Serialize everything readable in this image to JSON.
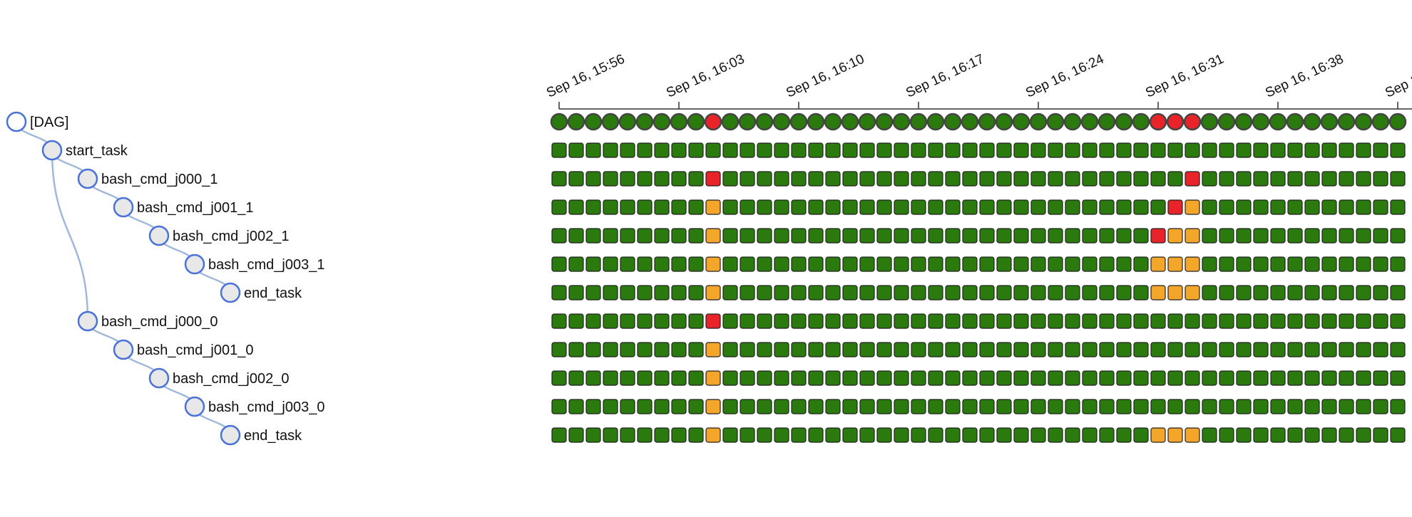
{
  "colors": {
    "success": "#2a7a0d",
    "failed": "#e8242a",
    "upstream_failed": "#f4a62a",
    "node_stroke": "#4a72d8",
    "node_fill": "#e8e8e8",
    "link": "#9fb8dc",
    "cell_stroke": "#222222",
    "dag_stroke": "#444444"
  },
  "tree": {
    "nodes": [
      {
        "label": "[DAG]",
        "depth": 0,
        "parent": null,
        "kind": "dag"
      },
      {
        "label": "start_task",
        "depth": 1,
        "parent": 0,
        "kind": "task"
      },
      {
        "label": "bash_cmd_j000_1",
        "depth": 2,
        "parent": 1,
        "kind": "task"
      },
      {
        "label": "bash_cmd_j001_1",
        "depth": 3,
        "parent": 2,
        "kind": "task"
      },
      {
        "label": "bash_cmd_j002_1",
        "depth": 4,
        "parent": 3,
        "kind": "task"
      },
      {
        "label": "bash_cmd_j003_1",
        "depth": 5,
        "parent": 4,
        "kind": "task"
      },
      {
        "label": "end_task",
        "depth": 6,
        "parent": 5,
        "kind": "task"
      },
      {
        "label": "bash_cmd_j000_0",
        "depth": 2,
        "parent": 1,
        "kind": "task"
      },
      {
        "label": "bash_cmd_j001_0",
        "depth": 3,
        "parent": 7,
        "kind": "task"
      },
      {
        "label": "bash_cmd_j002_0",
        "depth": 4,
        "parent": 8,
        "kind": "task"
      },
      {
        "label": "bash_cmd_j003_0",
        "depth": 5,
        "parent": 9,
        "kind": "task"
      },
      {
        "label": "end_task",
        "depth": 6,
        "parent": 10,
        "kind": "task"
      }
    ]
  },
  "timeline": {
    "ticks": [
      {
        "label": "Sep 16, 15:56",
        "col": 0
      },
      {
        "label": "Sep 16, 16:03",
        "col": 7
      },
      {
        "label": "Sep 16, 16:10",
        "col": 14
      },
      {
        "label": "Sep 16, 16:17",
        "col": 21
      },
      {
        "label": "Sep 16, 16:24",
        "col": 28
      },
      {
        "label": "Sep 16, 16:31",
        "col": 35
      },
      {
        "label": "Sep 16, 16:38",
        "col": 42
      },
      {
        "label": "Sep 1",
        "col": 49
      }
    ],
    "columns": 50,
    "row_overrides": [
      {
        "9": "failed",
        "35": "failed",
        "36": "failed",
        "37": "failed"
      },
      {},
      {
        "9": "failed",
        "37": "failed"
      },
      {
        "9": "upstream_failed",
        "36": "failed",
        "37": "upstream_failed"
      },
      {
        "9": "upstream_failed",
        "35": "failed",
        "36": "upstream_failed",
        "37": "upstream_failed"
      },
      {
        "9": "upstream_failed",
        "35": "upstream_failed",
        "36": "upstream_failed",
        "37": "upstream_failed"
      },
      {
        "9": "upstream_failed",
        "35": "upstream_failed",
        "36": "upstream_failed",
        "37": "upstream_failed"
      },
      {
        "9": "failed"
      },
      {
        "9": "upstream_failed"
      },
      {
        "9": "upstream_failed"
      },
      {
        "9": "upstream_failed"
      },
      {
        "9": "upstream_failed",
        "35": "upstream_failed",
        "36": "upstream_failed",
        "37": "upstream_failed"
      }
    ]
  }
}
